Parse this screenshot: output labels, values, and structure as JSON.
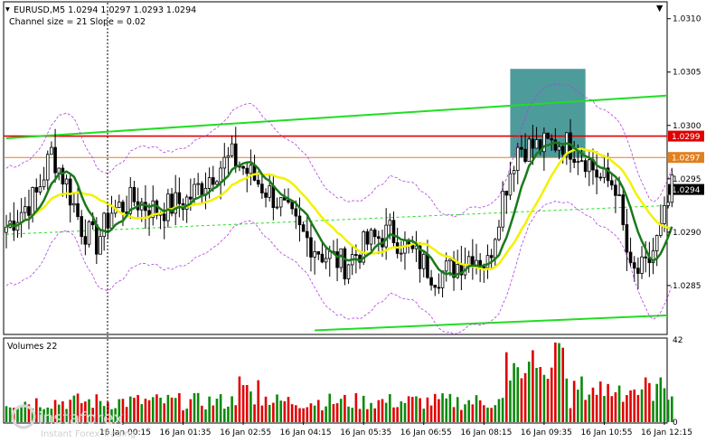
{
  "chart_data": {
    "type": "candlestick",
    "symbol_line": "EURUSD,M5  1.0294 1.0297 1.0293 1.0294",
    "indicator_line": "Channel size = 21 Slope = 0.02",
    "volume_label": "Volumes 22",
    "price_ticks": [
      "1.0310",
      "1.0305",
      "1.0300",
      "1.0295",
      "1.0290",
      "1.0285"
    ],
    "price_tick_values": [
      1.031,
      1.0305,
      1.03,
      1.0295,
      1.029,
      1.0285
    ],
    "ylim": [
      1.02805,
      1.03115
    ],
    "volume_ticks": [
      "42",
      "0"
    ],
    "volume_tick_values": [
      42,
      0
    ],
    "volume_max": 42,
    "time_labels": [
      "16 Jan 00:15",
      "16 Jan 01:35",
      "16 Jan 02:55",
      "16 Jan 04:15",
      "16 Jan 05:35",
      "16 Jan 06:55",
      "16 Jan 08:15",
      "16 Jan 09:35",
      "16 Jan 10:55",
      "16 Jan 12:15"
    ],
    "time_label_bars": [
      31,
      47,
      63,
      79,
      95,
      111,
      127,
      143,
      159,
      175
    ],
    "bar_count": 178,
    "levels": [
      {
        "price": 1.0299,
        "label": "1.0299",
        "color": "#e00000"
      },
      {
        "price": 1.0297,
        "label": "1.0297",
        "color": "#e08020"
      },
      {
        "price": 1.0294,
        "label": "1.0294",
        "color": "#000000"
      }
    ],
    "highlight_zone": {
      "bar_from": 134,
      "bar_to": 154,
      "price_low": 1.0297,
      "price_high": 1.03053,
      "color": "#2f8a8a"
    },
    "channel_upper": {
      "bar_from": 0,
      "price_from": 1.02988,
      "bar_to": 181,
      "price_to": 1.03028
    },
    "channel_lower": {
      "bar_from": 82,
      "price_from": 1.02808,
      "bar_to": 181,
      "price_to": 1.02822
    },
    "channel_mid": {
      "bar_from": 0,
      "price_from": 1.02898,
      "bar_to": 181,
      "price_to": 1.02925
    },
    "colors": {
      "bull": "#000000",
      "bear": "#000000",
      "vol_up": "#0a8a0a",
      "vol_down": "#e00000",
      "ma_fast": "#1a7a1a",
      "ma_slow": "#f2f200",
      "envelope": "#b040e0",
      "channel": "#22dd22"
    }
  },
  "watermark": {
    "brand": "instaforex",
    "tagline": "Instant Forex Trading"
  }
}
